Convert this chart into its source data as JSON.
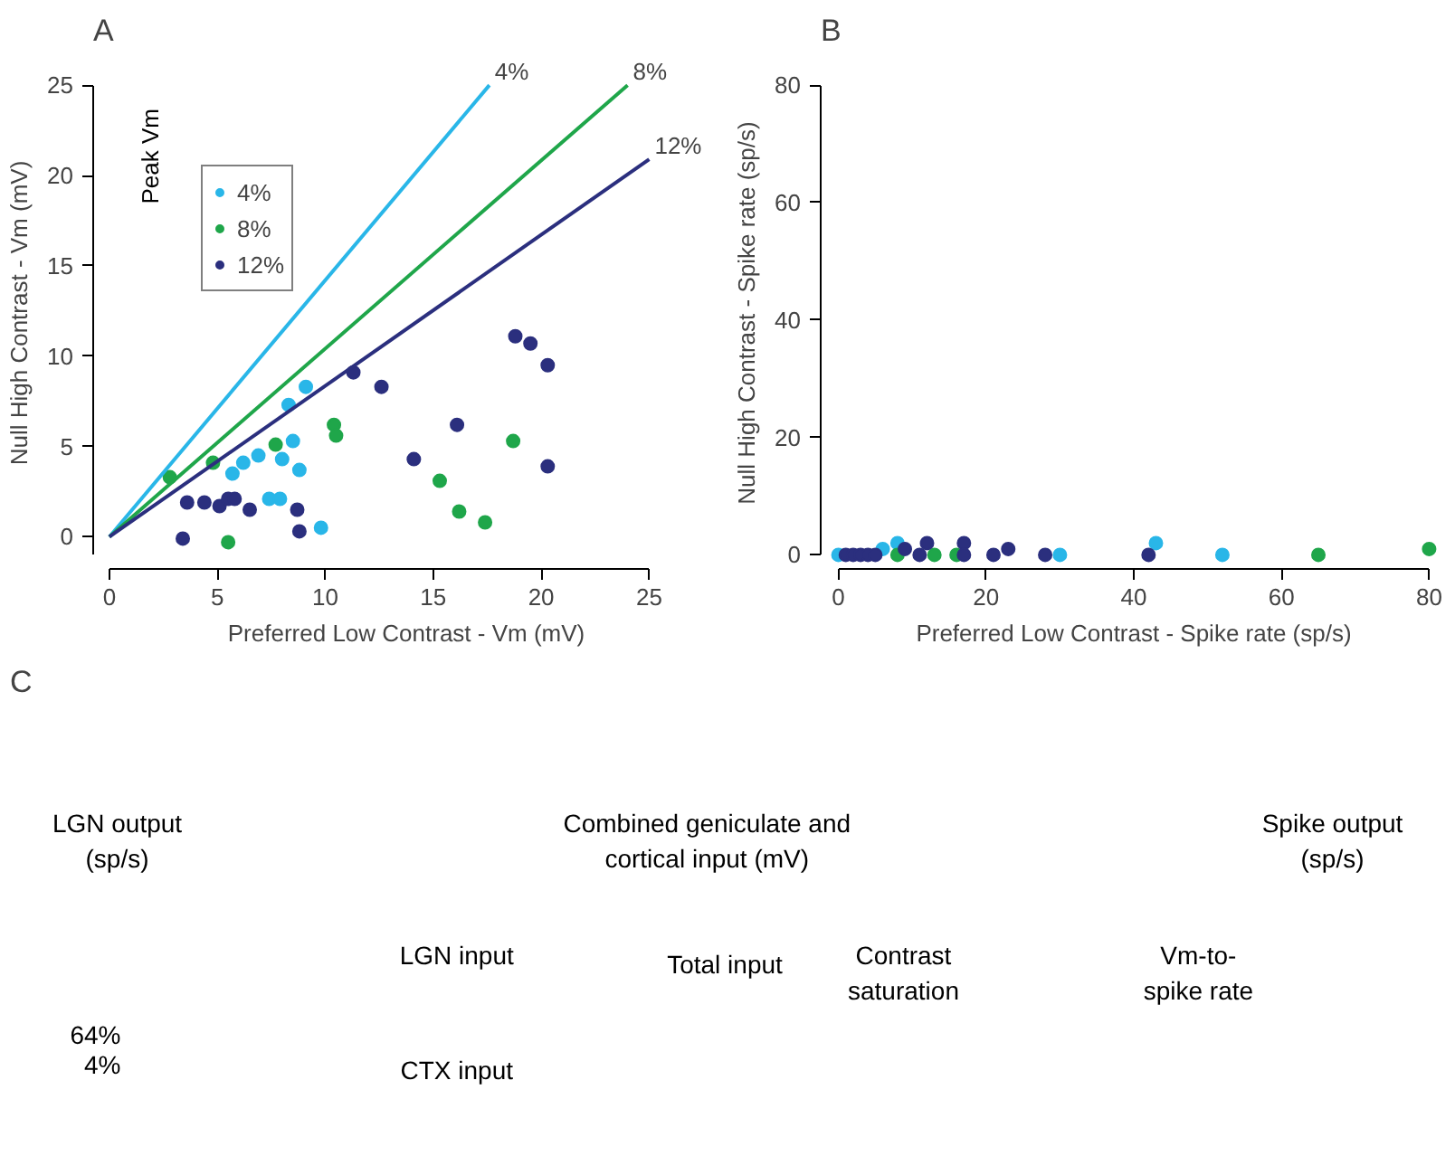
{
  "chart_data": [
    {
      "type": "scatter",
      "title": "A",
      "xlabel": "Preferred Low Contrast - Vm (mV)",
      "ylabel": "Null High Contrast - Vm (mV)",
      "xlim": [
        0,
        25
      ],
      "ylim": [
        -1,
        25
      ],
      "xticks": [
        0,
        5,
        10,
        15,
        20,
        25
      ],
      "yticks": [
        0,
        5,
        10,
        15,
        20,
        25
      ],
      "grid": false,
      "legend": "top left",
      "annotations": [
        "Peak Vm"
      ],
      "series": [
        {
          "name": "4%",
          "color": "#29b6e8",
          "x": [
            9.1,
            8.3,
            8.5,
            6.9,
            6.2,
            5.7,
            8.0,
            8.8,
            7.4,
            7.9,
            9.8
          ],
          "values": [
            8.3,
            7.3,
            5.3,
            4.5,
            4.1,
            3.5,
            4.3,
            3.7,
            2.1,
            2.1,
            0.5
          ]
        },
        {
          "name": "8%",
          "color": "#1fa64a",
          "x": [
            2.8,
            4.8,
            7.7,
            10.4,
            10.5,
            18.7,
            15.3,
            16.2,
            17.4,
            5.5
          ],
          "values": [
            3.3,
            4.1,
            5.1,
            6.2,
            5.6,
            5.3,
            3.1,
            1.4,
            0.8,
            -0.3
          ]
        },
        {
          "name": "12%",
          "color": "#2b2f7e",
          "x": [
            11.3,
            12.6,
            18.8,
            19.5,
            20.3,
            16.1,
            14.1,
            20.3,
            3.6,
            4.4,
            5.1,
            5.5,
            5.8,
            6.5,
            8.7,
            8.8,
            3.4
          ],
          "values": [
            9.1,
            8.3,
            11.1,
            10.7,
            9.5,
            6.2,
            4.3,
            3.9,
            1.9,
            1.9,
            1.7,
            2.1,
            2.1,
            1.5,
            1.5,
            0.3,
            -0.1
          ]
        },
        {
          "type": "line",
          "name": "4%",
          "color": "#29b6e8",
          "x": [
            0,
            17.6
          ],
          "values": [
            0,
            25
          ]
        },
        {
          "type": "line",
          "name": "8%",
          "color": "#1fa64a",
          "x": [
            0,
            24
          ],
          "values": [
            0,
            25
          ]
        },
        {
          "type": "line",
          "name": "12%",
          "color": "#2b2f7e",
          "x": [
            0,
            25
          ],
          "values": [
            0,
            20.9
          ]
        }
      ]
    },
    {
      "type": "scatter",
      "title": "B",
      "xlabel": "Preferred Low Contrast - Spike rate (sp/s)",
      "ylabel": "Null High Contrast - Spike rate (sp/s)",
      "xlim": [
        0,
        80
      ],
      "ylim": [
        0,
        80
      ],
      "xticks": [
        0,
        20,
        40,
        60,
        80
      ],
      "yticks": [
        0,
        20,
        40,
        60,
        80
      ],
      "grid": false,
      "series": [
        {
          "color": "#29b6e8",
          "x": [
            0,
            8,
            43,
            52,
            30,
            6
          ],
          "values": [
            0,
            2,
            2,
            0,
            0,
            1
          ]
        },
        {
          "color": "#1fa64a",
          "x": [
            13,
            16,
            65,
            80,
            8
          ],
          "values": [
            0,
            0,
            0,
            1,
            0
          ]
        },
        {
          "color": "#2b2f7e",
          "x": [
            1,
            2,
            3,
            4,
            5,
            9,
            12,
            17,
            17,
            21,
            23,
            28,
            42,
            11
          ],
          "values": [
            0,
            0,
            0,
            0,
            0,
            1,
            2,
            2,
            0,
            0,
            1,
            0,
            0,
            0
          ]
        }
      ]
    },
    {
      "type": "other",
      "title": "C",
      "annotations": [
        "LGN output\n(sp/s)",
        "Combined geniculate and\ncortical input (mV)",
        "Spike output\n(sp/s)",
        "LGN input",
        "CTX input",
        "Total input",
        "Contrast\nsaturation",
        "Vm-to-\nspike rate",
        "64%",
        "4%"
      ]
    }
  ]
}
